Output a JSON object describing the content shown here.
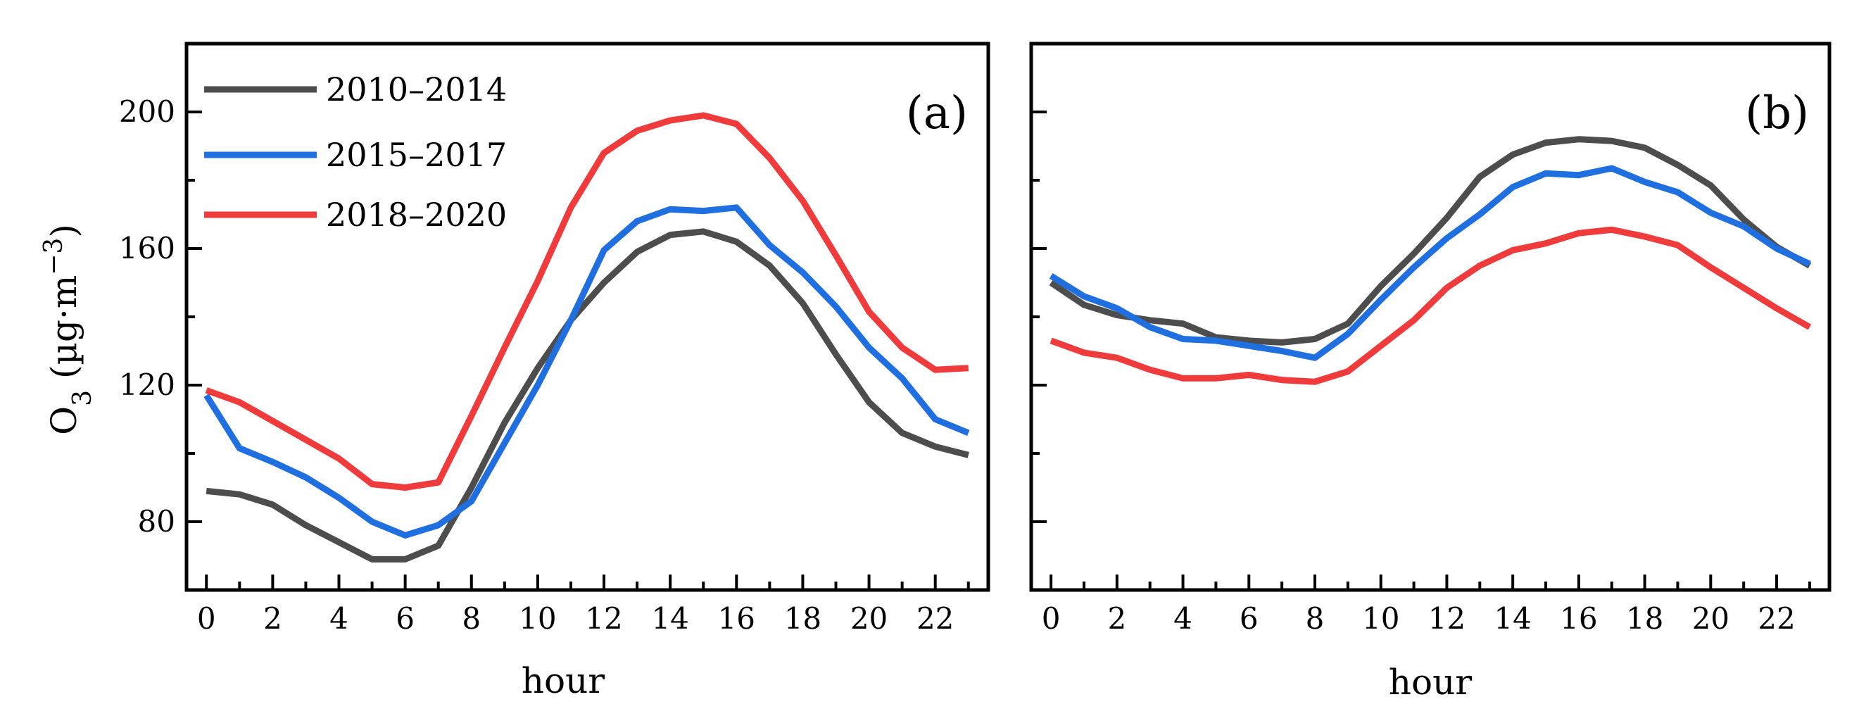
{
  "chart_data": [
    {
      "type": "line",
      "panel_label": "(a)",
      "xlabel": "hour",
      "ylabel": "O3 (µg·m−3)",
      "ylabel_parts": {
        "base": "O",
        "sub": "3",
        "unit_open": " (µg·m",
        "sup": "−3",
        "unit_close": ")"
      },
      "xlim": [
        -0.6,
        23.6
      ],
      "ylim": [
        60,
        220
      ],
      "xticks": [
        0,
        2,
        4,
        6,
        8,
        10,
        12,
        14,
        16,
        18,
        20,
        22
      ],
      "yticks": [
        80,
        120,
        160,
        200
      ],
      "yticks_minor": [
        100,
        140,
        180
      ],
      "x": [
        0,
        1,
        2,
        3,
        4,
        5,
        6,
        7,
        8,
        9,
        10,
        11,
        12,
        13,
        14,
        15,
        16,
        17,
        18,
        19,
        20,
        21,
        22,
        23
      ],
      "legend": {
        "position": "top-left"
      },
      "series": [
        {
          "name": "2010–2014",
          "color": "#4d4d4d",
          "values": [
            89,
            88,
            85,
            79,
            74,
            69,
            69,
            73,
            90,
            109,
            125,
            139,
            150,
            159,
            164,
            165,
            162,
            155,
            144,
            129,
            115,
            106,
            102,
            99.5
          ]
        },
        {
          "name": "2015–2017",
          "color": "#1f6fe0",
          "values": [
            117,
            101.5,
            97.5,
            93,
            87,
            80,
            76,
            79,
            86,
            103,
            120,
            139,
            159.5,
            168,
            171.5,
            171,
            172,
            161,
            153,
            143,
            131,
            122,
            110,
            106
          ]
        },
        {
          "name": "2018–2020",
          "color": "#ef3b3b",
          "values": [
            118.5,
            115,
            109.5,
            104,
            98.5,
            91,
            90,
            91.5,
            111,
            131,
            150.5,
            172,
            188,
            194.5,
            197.5,
            199,
            196.5,
            186.5,
            174,
            158,
            141.5,
            131,
            124.5,
            125
          ]
        }
      ]
    },
    {
      "type": "line",
      "panel_label": "(b)",
      "xlabel": "hour",
      "ylabel": "",
      "xlim": [
        -0.6,
        23.6
      ],
      "ylim": [
        60,
        220
      ],
      "xticks": [
        0,
        2,
        4,
        6,
        8,
        10,
        12,
        14,
        16,
        18,
        20,
        22
      ],
      "yticks": [
        80,
        120,
        160,
        200
      ],
      "yticks_minor": [
        100,
        140,
        180
      ],
      "ytick_labels_visible": false,
      "x": [
        0,
        1,
        2,
        3,
        4,
        5,
        6,
        7,
        8,
        9,
        10,
        11,
        12,
        13,
        14,
        15,
        16,
        17,
        18,
        19,
        20,
        21,
        22,
        23
      ],
      "series": [
        {
          "name": "2010–2014",
          "color": "#4d4d4d",
          "values": [
            150,
            143.5,
            140.5,
            139,
            138,
            134,
            133,
            132.5,
            133.5,
            138,
            149,
            158.5,
            169,
            181,
            187.5,
            191,
            192,
            191.5,
            189.5,
            184.5,
            178.5,
            168.5,
            160.5,
            155
          ]
        },
        {
          "name": "2015–2017",
          "color": "#1f6fe0",
          "values": [
            152,
            146,
            142.5,
            137,
            133.5,
            133,
            131.5,
            130,
            128,
            135,
            145,
            154.5,
            163,
            170,
            178,
            182,
            181.5,
            183.5,
            179.5,
            176.5,
            170.5,
            166.5,
            160,
            155.5
          ]
        },
        {
          "name": "2018–2020",
          "color": "#ef3b3b",
          "values": [
            133,
            129.5,
            128,
            124.5,
            122,
            122,
            123,
            121.5,
            121,
            124,
            131.5,
            139,
            148.5,
            155,
            159.5,
            161.5,
            164.5,
            165.5,
            163.5,
            161,
            154.5,
            148.5,
            142.5,
            137
          ]
        }
      ]
    }
  ]
}
